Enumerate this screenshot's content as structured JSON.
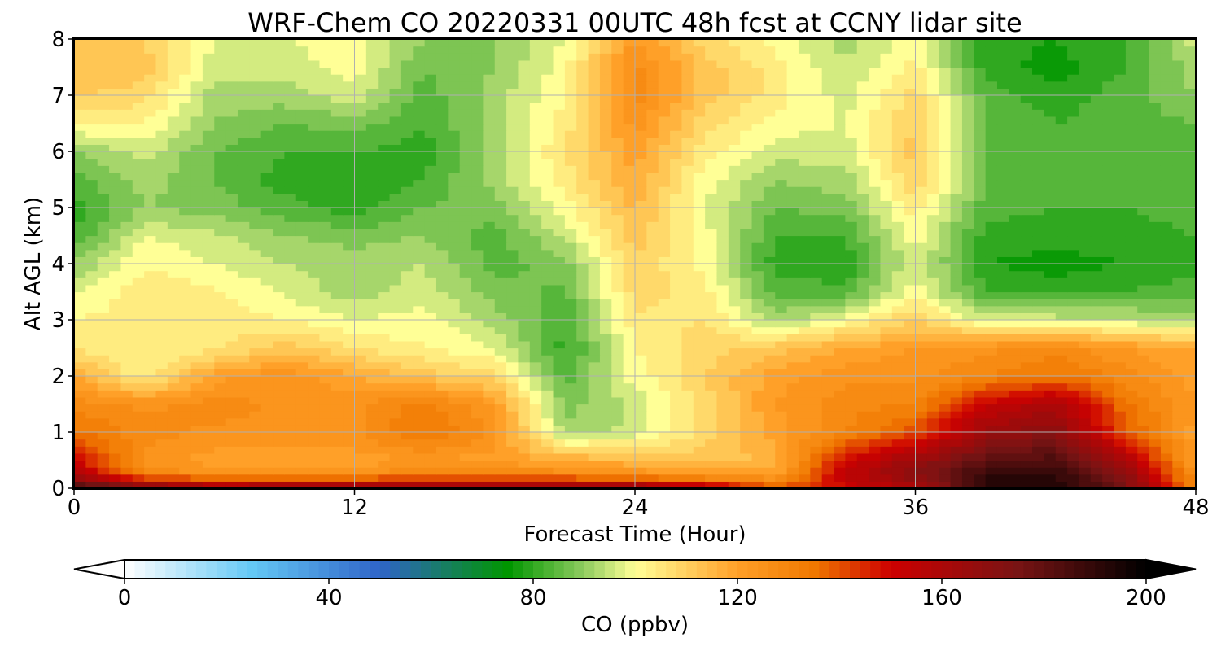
{
  "chart_data": {
    "type": "heatmap",
    "title": "WRF-Chem CO  20220331 00UTC 48h fcst at CCNY lidar site",
    "xlabel": "Forecast Time (Hour)",
    "ylabel": "Alt AGL (km)",
    "xlim": [
      0,
      48
    ],
    "ylim": [
      0,
      8
    ],
    "xticks": [
      0,
      12,
      24,
      36,
      48
    ],
    "yticks": [
      0,
      1,
      2,
      3,
      4,
      5,
      6,
      7,
      8
    ],
    "grid": true,
    "x": [
      0,
      3,
      6,
      9,
      12,
      15,
      18,
      21,
      24,
      27,
      30,
      33,
      36,
      39,
      42,
      45,
      48
    ],
    "y": [
      0,
      0.25,
      0.5,
      1,
      1.5,
      2,
      2.5,
      3,
      3.5,
      4,
      4.5,
      5,
      5.5,
      6,
      6.5,
      7,
      7.5,
      8
    ],
    "values": [
      [
        190,
        175,
        168,
        170,
        172,
        170,
        168,
        170,
        170,
        160,
        140,
        150,
        160,
        190,
        195,
        175,
        130
      ],
      [
        160,
        130,
        125,
        125,
        125,
        130,
        130,
        128,
        125,
        120,
        120,
        155,
        170,
        190,
        190,
        170,
        125
      ],
      [
        150,
        125,
        120,
        118,
        120,
        122,
        120,
        118,
        115,
        112,
        115,
        150,
        165,
        180,
        185,
        160,
        120
      ],
      [
        135,
        128,
        125,
        125,
        125,
        135,
        125,
        92,
        95,
        108,
        120,
        130,
        140,
        165,
        170,
        140,
        120
      ],
      [
        128,
        125,
        128,
        125,
        125,
        132,
        122,
        88,
        95,
        108,
        122,
        128,
        130,
        152,
        160,
        135,
        122
      ],
      [
        118,
        102,
        120,
        125,
        118,
        112,
        108,
        84,
        100,
        110,
        120,
        125,
        125,
        130,
        135,
        128,
        120
      ],
      [
        105,
        103,
        105,
        112,
        106,
        102,
        98,
        80,
        102,
        108,
        112,
        118,
        122,
        125,
        128,
        122,
        118
      ],
      [
        102,
        104,
        105,
        102,
        98,
        100,
        92,
        82,
        105,
        106,
        92,
        100,
        110,
        96,
        96,
        95,
        92
      ],
      [
        98,
        104,
        103,
        97,
        92,
        96,
        88,
        85,
        108,
        104,
        84,
        84,
        100,
        82,
        80,
        82,
        84
      ],
      [
        90,
        102,
        98,
        94,
        92,
        94,
        84,
        88,
        110,
        100,
        80,
        78,
        98,
        78,
        76,
        78,
        80
      ],
      [
        82,
        98,
        95,
        90,
        88,
        90,
        84,
        95,
        112,
        100,
        82,
        82,
        100,
        80,
        80,
        80,
        82
      ],
      [
        80,
        90,
        88,
        84,
        80,
        86,
        88,
        100,
        115,
        98,
        86,
        88,
        104,
        84,
        82,
        82,
        84
      ],
      [
        84,
        92,
        86,
        80,
        78,
        82,
        92,
        104,
        118,
        100,
        90,
        92,
        110,
        86,
        84,
        84,
        86
      ],
      [
        90,
        96,
        86,
        82,
        82,
        80,
        92,
        106,
        120,
        104,
        96,
        96,
        112,
        86,
        84,
        84,
        86
      ],
      [
        102,
        102,
        90,
        86,
        88,
        82,
        92,
        104,
        124,
        108,
        100,
        98,
        110,
        86,
        82,
        84,
        86
      ],
      [
        110,
        108,
        92,
        92,
        96,
        84,
        92,
        102,
        128,
        112,
        104,
        96,
        108,
        84,
        80,
        84,
        90
      ],
      [
        114,
        112,
        96,
        96,
        100,
        86,
        90,
        100,
        128,
        112,
        104,
        94,
        104,
        80,
        76,
        82,
        92
      ],
      [
        112,
        110,
        98,
        98,
        100,
        90,
        90,
        98,
        122,
        108,
        100,
        92,
        100,
        80,
        78,
        82,
        96
      ]
    ],
    "colorbar": {
      "label": "CO  (ppbv)",
      "min": 0,
      "max": 200,
      "ticks": [
        0,
        40,
        80,
        120,
        160,
        200
      ],
      "extend": "both",
      "stops": [
        {
          "v": 0,
          "c": "#ffffff"
        },
        {
          "v": 25,
          "c": "#64c8f5"
        },
        {
          "v": 50,
          "c": "#2f64c8"
        },
        {
          "v": 75,
          "c": "#009600"
        },
        {
          "v": 90,
          "c": "#90cc60"
        },
        {
          "v": 100,
          "c": "#ffff96"
        },
        {
          "v": 120,
          "c": "#ffa028"
        },
        {
          "v": 135,
          "c": "#f07800"
        },
        {
          "v": 150,
          "c": "#cd0000"
        },
        {
          "v": 175,
          "c": "#781414"
        },
        {
          "v": 200,
          "c": "#000000"
        }
      ]
    }
  }
}
